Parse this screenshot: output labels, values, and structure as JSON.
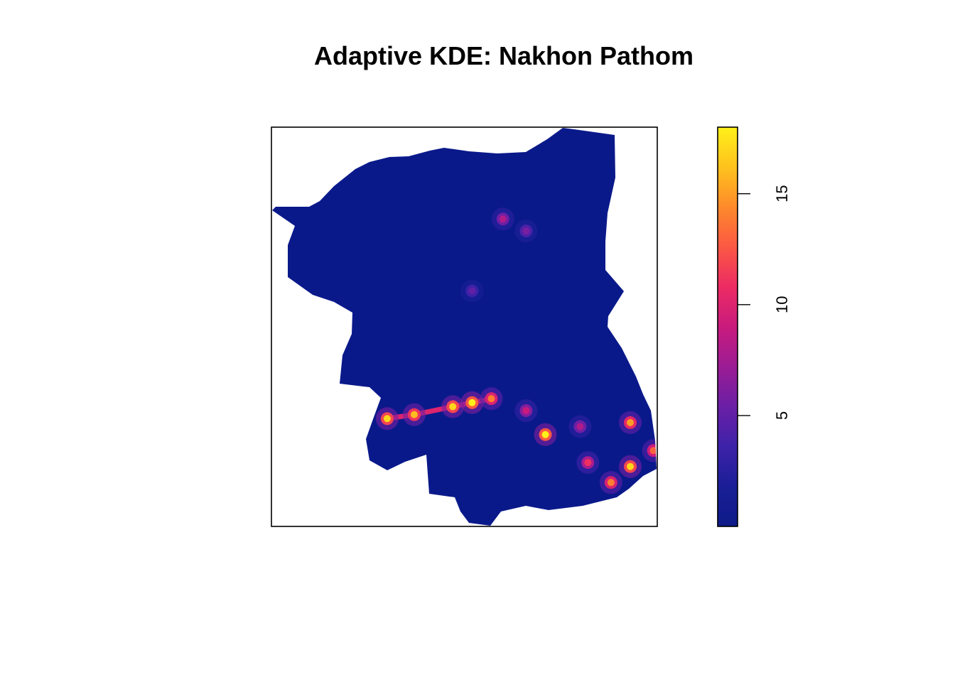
{
  "chart_data": {
    "type": "heatmap",
    "title": "Adaptive KDE: Nakhon Pathom",
    "xlabel": "",
    "ylabel": "",
    "colorbar": {
      "min": 0,
      "max": 18,
      "ticks": [
        5,
        10,
        15
      ],
      "palette": [
        "#0d1b87",
        "#1a1e96",
        "#3d22a8",
        "#6a1fa6",
        "#9b1c94",
        "#c91b7d",
        "#ec2b63",
        "#fb5844",
        "#fd8a2b",
        "#fec21d",
        "#fff01a"
      ]
    },
    "region_background": "#0a198a",
    "hotspots": [
      {
        "x": 0.3,
        "y": 0.27,
        "value": 17
      },
      {
        "x": 0.37,
        "y": 0.28,
        "value": 16
      },
      {
        "x": 0.47,
        "y": 0.3,
        "value": 17
      },
      {
        "x": 0.52,
        "y": 0.31,
        "value": 18
      },
      {
        "x": 0.57,
        "y": 0.32,
        "value": 14
      },
      {
        "x": 0.66,
        "y": 0.29,
        "value": 9
      },
      {
        "x": 0.71,
        "y": 0.23,
        "value": 18
      },
      {
        "x": 0.8,
        "y": 0.25,
        "value": 8
      },
      {
        "x": 0.82,
        "y": 0.16,
        "value": 11
      },
      {
        "x": 0.88,
        "y": 0.11,
        "value": 14
      },
      {
        "x": 0.93,
        "y": 0.26,
        "value": 15
      },
      {
        "x": 0.93,
        "y": 0.15,
        "value": 17
      },
      {
        "x": 0.99,
        "y": 0.19,
        "value": 13
      },
      {
        "x": 0.6,
        "y": 0.77,
        "value": 8
      },
      {
        "x": 0.66,
        "y": 0.74,
        "value": 6
      },
      {
        "x": 0.52,
        "y": 0.59,
        "value": 5
      }
    ]
  }
}
